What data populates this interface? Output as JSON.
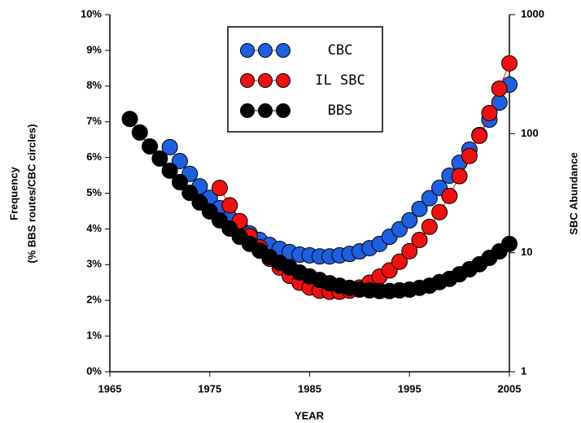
{
  "chart_data": {
    "type": "line",
    "x_label": "YEAR",
    "y_label": [
      "Frequency",
      "(% BBS routes/CBC circles)"
    ],
    "y2_label": "SBC Abundance",
    "xlim": [
      1965,
      2005
    ],
    "xticks": [
      1965,
      1975,
      1985,
      1995,
      2005
    ],
    "ylim": [
      0,
      10
    ],
    "yticks": [
      {
        "value": 0,
        "label": "0%"
      },
      {
        "value": 1,
        "label": "1%"
      },
      {
        "value": 2,
        "label": "2%"
      },
      {
        "value": 3,
        "label": "3%"
      },
      {
        "value": 4,
        "label": "4%"
      },
      {
        "value": 5,
        "label": "5%"
      },
      {
        "value": 6,
        "label": "6%"
      },
      {
        "value": 7,
        "label": "7%"
      },
      {
        "value": 8,
        "label": "8%"
      },
      {
        "value": 9,
        "label": "9%"
      },
      {
        "value": 10,
        "label": "10%"
      }
    ],
    "y2lim": [
      1,
      1000
    ],
    "y2ticks": [
      1,
      10,
      100,
      1000
    ],
    "y2_log": true,
    "series": [
      {
        "name": "CBC",
        "color": "#1f5fe0",
        "x": [
          1971,
          1972,
          1973,
          1974,
          1975,
          1976,
          1977,
          1978,
          1979,
          1980,
          1981,
          1982,
          1983,
          1984,
          1985,
          1986,
          1987,
          1988,
          1989,
          1990,
          1991,
          1992,
          1993,
          1994,
          1995,
          1996,
          1997,
          1998,
          1999,
          2000,
          2001,
          2002,
          2003,
          2004,
          2005
        ],
        "values": [
          6.29,
          5.9,
          5.54,
          5.19,
          4.87,
          4.58,
          4.31,
          4.08,
          3.87,
          3.69,
          3.55,
          3.44,
          3.35,
          3.28,
          3.26,
          3.23,
          3.23,
          3.26,
          3.3,
          3.37,
          3.46,
          3.58,
          3.78,
          3.99,
          4.24,
          4.56,
          4.86,
          5.15,
          5.49,
          5.85,
          6.22,
          6.63,
          7.06,
          7.54,
          8.04
        ]
      },
      {
        "name": "IL SBC",
        "color": "#ee1111",
        "axis": "y2",
        "x": [
          1976,
          1977,
          1978,
          1979,
          1980,
          1981,
          1982,
          1983,
          1984,
          1985,
          1986,
          1987,
          1988,
          1989,
          1990,
          1991,
          1992,
          1993,
          1994,
          1995,
          1996,
          1997,
          1998,
          1999,
          2000,
          2001,
          2002,
          2003,
          2004,
          2005
        ],
        "values": [
          35,
          25,
          18.4,
          13.8,
          11.1,
          8.9,
          7.5,
          6.4,
          5.6,
          5.1,
          4.8,
          4.7,
          4.7,
          4.8,
          5.1,
          5.6,
          6.3,
          7.1,
          8.4,
          10.3,
          12.8,
          16.5,
          21.9,
          30,
          44,
          65,
          96,
          149,
          239,
          390
        ]
      },
      {
        "name": "BBS",
        "color": "#000000",
        "x": [
          1967,
          1968,
          1969,
          1970,
          1971,
          1972,
          1973,
          1974,
          1975,
          1976,
          1977,
          1978,
          1979,
          1980,
          1981,
          1982,
          1983,
          1984,
          1985,
          1986,
          1987,
          1988,
          1989,
          1990,
          1991,
          1992,
          1993,
          1994,
          1995,
          1996,
          1997,
          1998,
          1999,
          2000,
          2001,
          2002,
          2003,
          2004,
          2005
        ],
        "values": [
          7.08,
          6.7,
          6.31,
          5.97,
          5.63,
          5.31,
          5.01,
          4.74,
          4.49,
          4.24,
          4.01,
          3.78,
          3.58,
          3.39,
          3.21,
          3.05,
          2.92,
          2.78,
          2.67,
          2.57,
          2.48,
          2.41,
          2.35,
          2.3,
          2.28,
          2.26,
          2.26,
          2.28,
          2.3,
          2.35,
          2.41,
          2.51,
          2.6,
          2.73,
          2.87,
          3.01,
          3.19,
          3.37,
          3.58
        ]
      }
    ]
  }
}
